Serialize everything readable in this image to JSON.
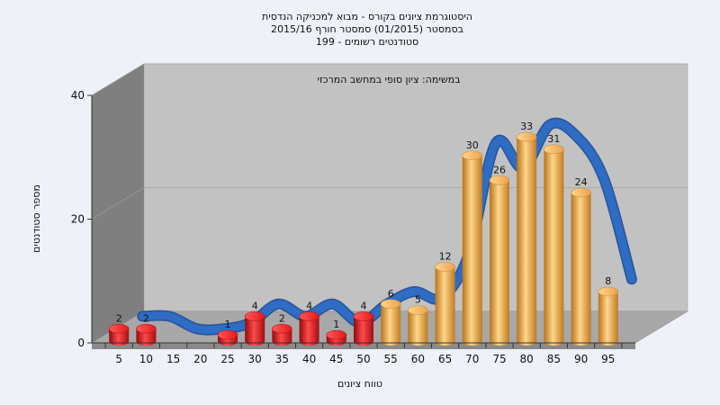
{
  "chart_data": {
    "type": "bar",
    "title": [
      "היסטוגרמת ציונים בקורס - מבוא למכניקה הנדסית",
      "בסמסטר  (01/2015)  סמסטר חורף 2015/16",
      "199 - סטודנטים רשומים"
    ],
    "subtitle": "במשימה: ציון סופי במחשב המרכזי",
    "xlabel": "טווח ציונים",
    "ylabel": "מספר סטודנטים",
    "categories": [
      "5",
      "10",
      "15",
      "20",
      "25",
      "30",
      "35",
      "40",
      "45",
      "50",
      "55",
      "60",
      "65",
      "70",
      "75",
      "80",
      "85",
      "90",
      "95"
    ],
    "values": [
      2,
      2,
      0,
      0,
      1,
      4,
      2,
      4,
      1,
      4,
      6,
      5,
      12,
      30,
      26,
      33,
      31,
      24,
      8
    ],
    "data_labels": [
      "2",
      "2",
      "",
      "",
      "1",
      "4",
      "2",
      "4",
      "1",
      "4",
      "6",
      "5",
      "12",
      "30",
      "26",
      "33",
      "31",
      "24",
      "8"
    ],
    "ylim": [
      0,
      40
    ],
    "yticks": [
      "0",
      "20",
      "40"
    ],
    "grid": true,
    "fail_threshold": 55,
    "colors": {
      "fail": "#d9141b",
      "pass": "#e9a23c",
      "curve": "#2f6cc4",
      "curve_low": "#555555",
      "wall": "#7f7f7f",
      "back_wall": "#c2c2c2",
      "floor": "#a8a8a8"
    }
  }
}
